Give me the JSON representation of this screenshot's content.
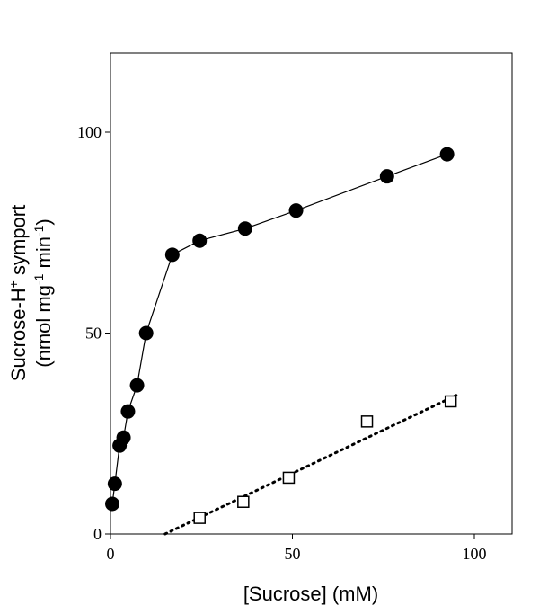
{
  "chart_data": {
    "type": "scatter",
    "title": "",
    "xlabel": "[Sucrose] (mM)",
    "ylabel_line1": {
      "main": "Sucrose-H",
      "sup": "+",
      "rest": " symport"
    },
    "ylabel_line2": {
      "p1": "(nmol mg",
      "sup1": "-1",
      "p2": " min",
      "sup2": "-1",
      "p3": ")"
    },
    "xlim": [
      0,
      110
    ],
    "ylim": [
      0,
      120
    ],
    "xticks": [
      0,
      50,
      100
    ],
    "yticks": [
      0,
      50,
      100
    ],
    "xtick_labels": [
      "0",
      "50",
      "100"
    ],
    "ytick_labels": [
      "0",
      "50",
      "100"
    ],
    "grid": false,
    "legend": "none",
    "series": [
      {
        "marker": "filled-circle",
        "line": "solid",
        "color": "#000000",
        "points": [
          {
            "x": 0.5,
            "y": 7.5
          },
          {
            "x": 1.2,
            "y": 12.5
          },
          {
            "x": 2.5,
            "y": 22.0
          },
          {
            "x": 3.6,
            "y": 24.0
          },
          {
            "x": 4.8,
            "y": 30.5
          },
          {
            "x": 7.3,
            "y": 37.0
          },
          {
            "x": 9.8,
            "y": 50.0
          },
          {
            "x": 17.0,
            "y": 69.5
          },
          {
            "x": 24.5,
            "y": 73.0
          },
          {
            "x": 37.0,
            "y": 76.0
          },
          {
            "x": 51.0,
            "y": 80.5
          },
          {
            "x": 76.0,
            "y": 89.0
          },
          {
            "x": 92.5,
            "y": 94.5
          }
        ]
      },
      {
        "marker": "open-square",
        "line": "none",
        "color": "#000000",
        "points": [
          {
            "x": 24.5,
            "y": 4.0
          },
          {
            "x": 36.5,
            "y": 8.0
          },
          {
            "x": 49.0,
            "y": 14.0
          },
          {
            "x": 70.5,
            "y": 28.0
          },
          {
            "x": 93.5,
            "y": 33.0
          }
        ],
        "fit_line": {
          "style": "dotted",
          "x": [
            15.0,
            95.0
          ],
          "y": [
            0.0,
            34.5
          ]
        }
      }
    ]
  }
}
